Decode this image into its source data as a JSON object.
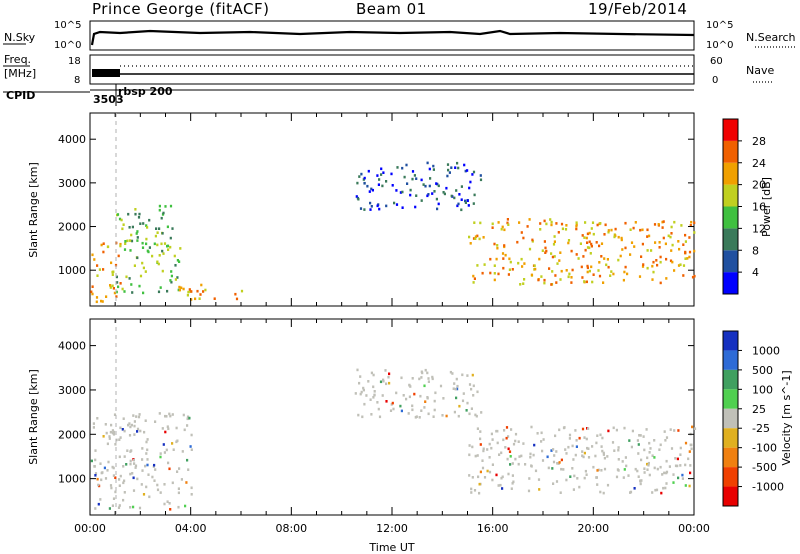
{
  "header": {
    "station": "Prince George (fitACF)",
    "beam": "Beam 01",
    "date": "19/Feb/2014"
  },
  "strip": {
    "nsky_label": "N.Sky",
    "nsky_ticks": [
      "10^5",
      "10^0"
    ],
    "nsearch_label": "N.Search",
    "nsearch_ticks": [
      "10^5",
      "10^0"
    ],
    "freq_label_1": "Freq.",
    "freq_label_2": "[MHz]",
    "freq_ticks": [
      "18",
      "8"
    ],
    "nave_label": "Nave",
    "nave_ticks": [
      "60",
      "0"
    ],
    "cpid_label": "CPID",
    "cpid_values": [
      "3503",
      "rbsp 200"
    ]
  },
  "colors": {
    "power": [
      "#0000ff",
      "#2050a0",
      "#3a7a5a",
      "#40c040",
      "#c0d020",
      "#f0a000",
      "#f06000",
      "#f00000"
    ],
    "velocity": [
      "#1530c0",
      "#2e6bd6",
      "#40a060",
      "#50d050",
      "#c0c0b8",
      "#e0b020",
      "#f08010",
      "#f04000",
      "#e80000"
    ]
  },
  "chart_data": [
    {
      "type": "heatmap",
      "name": "power",
      "ylabel": "Slant Range [km]",
      "xlabel": "",
      "x_ticks": [
        "00:00",
        "04:00",
        "08:00",
        "12:00",
        "16:00",
        "20:00",
        "00:00"
      ],
      "y_ticks": [
        "1000",
        "2000",
        "3000",
        "4000"
      ],
      "xlim_hours": [
        0,
        24
      ],
      "ylim_km": [
        180,
        4600
      ],
      "colorbar": {
        "label": "Power [dB]",
        "ticks": [
          "4",
          "8",
          "12",
          "16",
          "20",
          "24",
          "28"
        ]
      },
      "regions": [
        {
          "t0": 0.0,
          "t1": 1.2,
          "r0": 300,
          "r1": 1700,
          "level": "high"
        },
        {
          "t0": 1.0,
          "t1": 3.6,
          "r0": 500,
          "r1": 2500,
          "level": "mid"
        },
        {
          "t0": 3.4,
          "t1": 6.0,
          "r0": 300,
          "r1": 700,
          "level": "high"
        },
        {
          "t0": 10.5,
          "t1": 15.5,
          "r0": 2400,
          "r1": 3500,
          "level": "low"
        },
        {
          "t0": 15.0,
          "t1": 24.0,
          "r0": 700,
          "r1": 2200,
          "level": "high"
        }
      ]
    },
    {
      "type": "heatmap",
      "name": "velocity",
      "ylabel": "Slant Range [km]",
      "xlabel": "Time UT",
      "x_ticks": [
        "00:00",
        "04:00",
        "08:00",
        "12:00",
        "16:00",
        "20:00",
        "00:00"
      ],
      "y_ticks": [
        "1000",
        "2000",
        "3000",
        "4000"
      ],
      "xlim_hours": [
        0,
        24
      ],
      "ylim_km": [
        180,
        4600
      ],
      "colorbar": {
        "label": "Velocity [m s^-1]",
        "ticks": [
          "1000",
          "500",
          "100",
          "25",
          "-25",
          "-100",
          "-500",
          "-1000"
        ]
      },
      "regions": [
        {
          "t0": 0.0,
          "t1": 4.0,
          "r0": 300,
          "r1": 2500,
          "level": "ground"
        },
        {
          "t0": 10.5,
          "t1": 15.5,
          "r0": 2400,
          "r1": 3500,
          "level": "ground"
        },
        {
          "t0": 15.0,
          "t1": 24.0,
          "r0": 700,
          "r1": 2200,
          "level": "ground"
        }
      ]
    }
  ]
}
